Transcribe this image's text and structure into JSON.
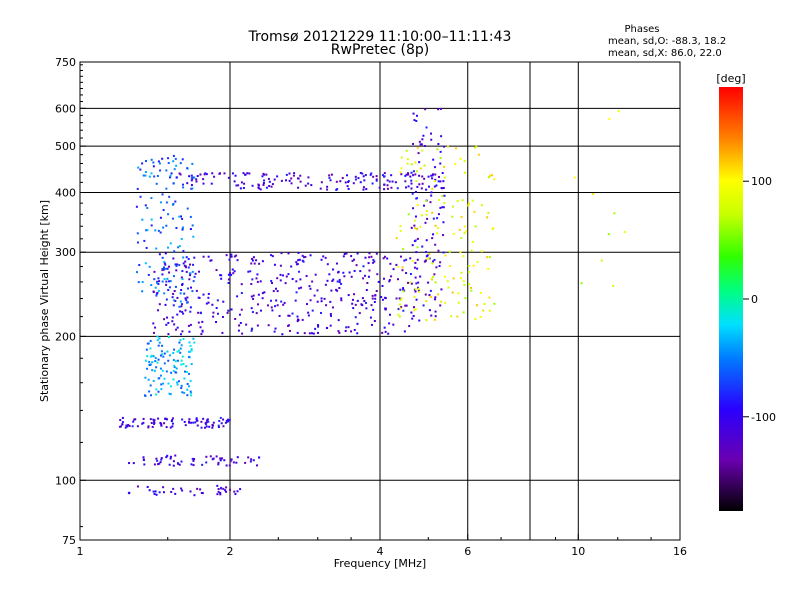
{
  "chart_data": {
    "type": "scatter",
    "title": "Tromsø 20121229 11:10:00–11:11:43",
    "subtitle": "RwPretec (8p)",
    "xlabel": "Frequency [MHz]",
    "ylabel": "Stationary phase Virtual Height [km]",
    "x_scale": "log",
    "y_scale": "log",
    "xlim": [
      1,
      16
    ],
    "ylim": [
      75,
      750
    ],
    "x_ticks": [
      "1",
      "2",
      "4",
      "6",
      "10",
      "16"
    ],
    "x_tick_values": [
      1,
      2,
      4,
      6,
      10,
      16
    ],
    "y_ticks": [
      "75",
      "100",
      "200",
      "300",
      "400",
      "500",
      "600",
      "750"
    ],
    "y_tick_values": [
      75,
      100,
      200,
      300,
      400,
      500,
      600,
      750
    ],
    "grid_x": [
      2,
      4,
      6,
      8,
      10
    ],
    "grid_y": [
      100,
      200,
      300,
      400,
      500,
      600
    ],
    "grid": true,
    "colorbar": {
      "label": "[deg]",
      "range": [
        -180,
        180
      ],
      "ticks": [
        "100",
        "0",
        "-100"
      ],
      "tick_values": [
        100,
        0,
        -100
      ]
    },
    "stats": {
      "heading": "Phases",
      "line_o": "mean, sd,O:  -88.3, 18.2",
      "line_x": "mean, sd,X:  86.0, 22.0"
    },
    "traces": [
      {
        "mode": "O",
        "x_range": [
          1.25,
          2.1
        ],
        "height": 95,
        "phase_mean": -110,
        "count": 40
      },
      {
        "mode": "O",
        "x_range": [
          1.25,
          2.3
        ],
        "height": 110,
        "phase_mean": -110,
        "count": 60
      },
      {
        "mode": "O",
        "x_range": [
          1.2,
          2.0
        ],
        "height": 132,
        "phase_mean": -105,
        "count": 90
      },
      {
        "mode": "O",
        "x_range": [
          1.35,
          1.7
        ],
        "height_range": [
          150,
          200
        ],
        "phase_mean": -40,
        "count": 120
      },
      {
        "mode": "O",
        "x_range": [
          1.4,
          4.8
        ],
        "height_range": [
          202,
          300
        ],
        "phase_mean": -110,
        "count": 420
      },
      {
        "mode": "O",
        "x_range": [
          1.5,
          5.4
        ],
        "height_range": [
          405,
          440
        ],
        "phase_mean": -110,
        "count": 170
      },
      {
        "mode": "O",
        "x_range": [
          1.3,
          1.7
        ],
        "height_range": [
          230,
          480
        ],
        "phase_mean": -60,
        "count": 150
      },
      {
        "mode": "O",
        "x_range": [
          4.6,
          5.4
        ],
        "height_range": [
          220,
          600
        ],
        "phase_mean": -110,
        "count": 110
      },
      {
        "mode": "X",
        "x_range": [
          4.3,
          6.8
        ],
        "height_range": [
          215,
          500
        ],
        "phase_mean": 90,
        "count": 150
      },
      {
        "mode": "O",
        "x_range": [
          9.5,
          12.5
        ],
        "height_range": [
          250,
          620
        ],
        "phase_mean": 80,
        "count": 10
      }
    ]
  }
}
